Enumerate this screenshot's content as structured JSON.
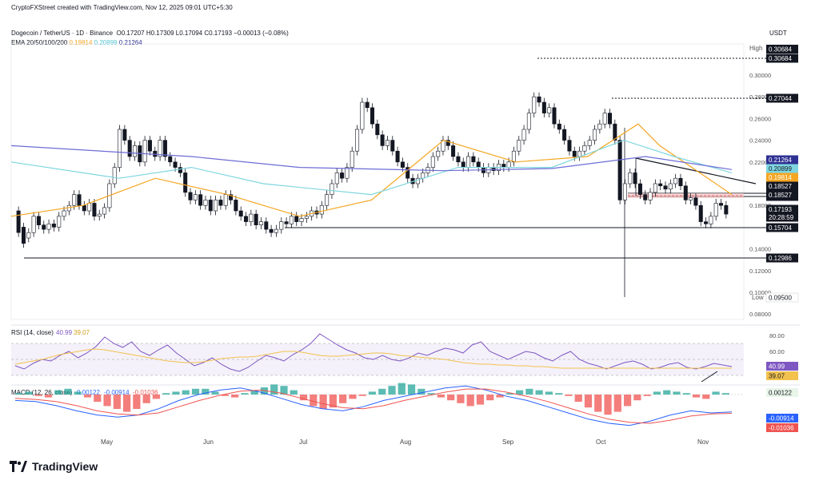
{
  "header": {
    "created": "CryptoFXStreet created with TradingView.com, Nov 12, 2025 09:01 UTC+5:30",
    "symbol": "Dogecoin / TetherUS · 1D · Binance",
    "ohlc": "O0.17207 H0.17309 L0.17094 C0.17193 −0.00013 (−0.08%)",
    "ema_label": "EMA 20/50/100/200",
    "ema_values": [
      "0.19814",
      "0.20899",
      "0.21264"
    ],
    "currency": "USDT"
  },
  "branding": {
    "name": "TradingView"
  },
  "colors": {
    "up": "#26a69a",
    "down": "#131722",
    "ema20": "#f5a623",
    "ema50": "#7fd6e0",
    "ema200": "#6c6cd6",
    "rsi": "#7e57c2",
    "rsi_ma": "#f2c14e",
    "macd": "#2962ff",
    "signal": "#ef5350",
    "hist_up": "#26a69a",
    "hist_down": "#ef5350"
  },
  "chart_data": [
    {
      "type": "candlestick",
      "title": "Dogecoin / TetherUS · 1D · Binance",
      "x_labels": [
        "May",
        "Jun",
        "Jul",
        "Aug",
        "Sep",
        "Oct",
        "Nov"
      ],
      "y_ticks": [
        "0.30000",
        "0.28000",
        "0.26000",
        "0.24000",
        "0.22000",
        "0.18000",
        "0.14000",
        "0.12000",
        "0.10000",
        "0.08000"
      ],
      "ylim": [
        0.075,
        0.325
      ],
      "price_path": [
        [
          0.175,
          0.155
        ],
        [
          0.16,
          0.145
        ],
        [
          0.15,
          0.155
        ],
        [
          0.155,
          0.17
        ],
        [
          0.17,
          0.162
        ],
        [
          0.162,
          0.158
        ],
        [
          0.158,
          0.163
        ],
        [
          0.163,
          0.16
        ],
        [
          0.16,
          0.17
        ],
        [
          0.17,
          0.175
        ],
        [
          0.175,
          0.18
        ],
        [
          0.18,
          0.19
        ],
        [
          0.19,
          0.18
        ],
        [
          0.18,
          0.175
        ],
        [
          0.175,
          0.182
        ],
        [
          0.182,
          0.17
        ],
        [
          0.17,
          0.172
        ],
        [
          0.172,
          0.178
        ],
        [
          0.178,
          0.2
        ],
        [
          0.2,
          0.215
        ],
        [
          0.215,
          0.25
        ],
        [
          0.25,
          0.24
        ],
        [
          0.24,
          0.225
        ],
        [
          0.225,
          0.235
        ],
        [
          0.235,
          0.22
        ],
        [
          0.22,
          0.24
        ],
        [
          0.24,
          0.23
        ],
        [
          0.23,
          0.225
        ],
        [
          0.225,
          0.24
        ],
        [
          0.24,
          0.225
        ],
        [
          0.225,
          0.22
        ],
        [
          0.22,
          0.215
        ],
        [
          0.215,
          0.21
        ],
        [
          0.21,
          0.192
        ],
        [
          0.192,
          0.185
        ],
        [
          0.185,
          0.19
        ],
        [
          0.19,
          0.18
        ],
        [
          0.18,
          0.185
        ],
        [
          0.185,
          0.175
        ],
        [
          0.175,
          0.185
        ],
        [
          0.185,
          0.18
        ],
        [
          0.18,
          0.19
        ],
        [
          0.19,
          0.185
        ],
        [
          0.185,
          0.175
        ],
        [
          0.175,
          0.17
        ],
        [
          0.17,
          0.165
        ],
        [
          0.165,
          0.172
        ],
        [
          0.172,
          0.162
        ],
        [
          0.162,
          0.165
        ],
        [
          0.165,
          0.158
        ],
        [
          0.158,
          0.155
        ],
        [
          0.155,
          0.158
        ],
        [
          0.158,
          0.165
        ],
        [
          0.165,
          0.163
        ],
        [
          0.163,
          0.17
        ],
        [
          0.17,
          0.165
        ],
        [
          0.165,
          0.168
        ],
        [
          0.168,
          0.17
        ],
        [
          0.17,
          0.175
        ],
        [
          0.175,
          0.172
        ],
        [
          0.172,
          0.18
        ],
        [
          0.18,
          0.19
        ],
        [
          0.19,
          0.2
        ],
        [
          0.2,
          0.21
        ],
        [
          0.21,
          0.205
        ],
        [
          0.205,
          0.215
        ],
        [
          0.215,
          0.23
        ],
        [
          0.23,
          0.25
        ],
        [
          0.25,
          0.275
        ],
        [
          0.275,
          0.27
        ],
        [
          0.27,
          0.255
        ],
        [
          0.255,
          0.245
        ],
        [
          0.245,
          0.235
        ],
        [
          0.235,
          0.24
        ],
        [
          0.24,
          0.23
        ],
        [
          0.23,
          0.22
        ],
        [
          0.22,
          0.215
        ],
        [
          0.215,
          0.205
        ],
        [
          0.205,
          0.2
        ],
        [
          0.2,
          0.205
        ],
        [
          0.205,
          0.21
        ],
        [
          0.21,
          0.215
        ],
        [
          0.215,
          0.225
        ],
        [
          0.225,
          0.23
        ],
        [
          0.23,
          0.24
        ],
        [
          0.24,
          0.235
        ],
        [
          0.235,
          0.225
        ],
        [
          0.225,
          0.22
        ],
        [
          0.22,
          0.215
        ],
        [
          0.215,
          0.225
        ],
        [
          0.225,
          0.22
        ],
        [
          0.22,
          0.215
        ],
        [
          0.215,
          0.21
        ],
        [
          0.21,
          0.215
        ],
        [
          0.215,
          0.212
        ],
        [
          0.212,
          0.218
        ],
        [
          0.218,
          0.215
        ],
        [
          0.215,
          0.22
        ],
        [
          0.22,
          0.23
        ],
        [
          0.23,
          0.24
        ],
        [
          0.24,
          0.25
        ],
        [
          0.25,
          0.265
        ],
        [
          0.265,
          0.28
        ],
        [
          0.28,
          0.275
        ],
        [
          0.275,
          0.265
        ],
        [
          0.265,
          0.27
        ],
        [
          0.27,
          0.255
        ],
        [
          0.255,
          0.25
        ],
        [
          0.25,
          0.24
        ],
        [
          0.24,
          0.23
        ],
        [
          0.23,
          0.225
        ],
        [
          0.225,
          0.23
        ],
        [
          0.23,
          0.235
        ],
        [
          0.235,
          0.24
        ],
        [
          0.24,
          0.25
        ],
        [
          0.25,
          0.255
        ],
        [
          0.255,
          0.265
        ],
        [
          0.265,
          0.255
        ],
        [
          0.255,
          0.24
        ],
        [
          0.24,
          0.185
        ],
        [
          0.185,
          0.2
        ],
        [
          0.2,
          0.21
        ],
        [
          0.21,
          0.2
        ],
        [
          0.2,
          0.19
        ],
        [
          0.19,
          0.185
        ],
        [
          0.185,
          0.192
        ],
        [
          0.192,
          0.2
        ],
        [
          0.2,
          0.198
        ],
        [
          0.198,
          0.195
        ],
        [
          0.195,
          0.2
        ],
        [
          0.2,
          0.205
        ],
        [
          0.205,
          0.198
        ],
        [
          0.198,
          0.185
        ],
        [
          0.185,
          0.187
        ],
        [
          0.187,
          0.18
        ],
        [
          0.18,
          0.165
        ],
        [
          0.165,
          0.163
        ],
        [
          0.163,
          0.17
        ],
        [
          0.17,
          0.182
        ],
        [
          0.182,
          0.18
        ],
        [
          0.18,
          0.172
        ]
      ],
      "ema20": [
        [
          0,
          0.17
        ],
        [
          0.1,
          0.18
        ],
        [
          0.2,
          0.205
        ],
        [
          0.3,
          0.19
        ],
        [
          0.4,
          0.17
        ],
        [
          0.5,
          0.185
        ],
        [
          0.6,
          0.24
        ],
        [
          0.7,
          0.22
        ],
        [
          0.8,
          0.225
        ],
        [
          0.87,
          0.255
        ],
        [
          0.9,
          0.235
        ],
        [
          1,
          0.19
        ]
      ],
      "ema50": [
        [
          0,
          0.22
        ],
        [
          0.15,
          0.205
        ],
        [
          0.25,
          0.215
        ],
        [
          0.35,
          0.2
        ],
        [
          0.5,
          0.19
        ],
        [
          0.62,
          0.215
        ],
        [
          0.75,
          0.215
        ],
        [
          0.85,
          0.24
        ],
        [
          0.92,
          0.225
        ],
        [
          1,
          0.21
        ]
      ],
      "ema200": [
        [
          0,
          0.235
        ],
        [
          0.25,
          0.225
        ],
        [
          0.4,
          0.215
        ],
        [
          0.6,
          0.212
        ],
        [
          0.75,
          0.214
        ],
        [
          0.88,
          0.225
        ],
        [
          1,
          0.213
        ]
      ],
      "levels": [
        "0.30684",
        "0.27044",
        "0.18527",
        "0.18527",
        "0.15704",
        "0.12986"
      ],
      "high_label": "High",
      "high_value": "0.30684",
      "low_label": "Low",
      "low_value": "0.09500",
      "price_tags": [
        {
          "value": "0.21264",
          "color": "#2e3192"
        },
        {
          "value": "0.20899",
          "color": "#7fd6e0"
        },
        {
          "value": "0.19814",
          "color": "#f5a623"
        },
        {
          "value": "0.18527",
          "color": "#131722"
        },
        {
          "value": "0.18527",
          "color": "#131722"
        },
        {
          "value": "0.17193",
          "color": "#131722"
        },
        {
          "value": "20:28:59",
          "color": "#131722"
        }
      ]
    },
    {
      "type": "line",
      "title": "RSI (14, close)",
      "values_label": [
        "40.99",
        "39.07"
      ],
      "y_ticks": [
        "80.00",
        "60.00"
      ],
      "ylim": [
        25,
        90
      ],
      "rsi": [
        42,
        38,
        45,
        50,
        48,
        55,
        60,
        52,
        58,
        66,
        78,
        70,
        65,
        72,
        60,
        55,
        62,
        68,
        58,
        50,
        42,
        46,
        52,
        44,
        38,
        35,
        40,
        48,
        55,
        52,
        48,
        56,
        62,
        70,
        82,
        75,
        68,
        62,
        58,
        52,
        50,
        55,
        50,
        48,
        52,
        58,
        55,
        60,
        64,
        62,
        58,
        68,
        72,
        60,
        55,
        50,
        55,
        60,
        58,
        52,
        48,
        55,
        60,
        50,
        45,
        42,
        38,
        42,
        46,
        48,
        44,
        38,
        40,
        44,
        46,
        40,
        38,
        41,
        45,
        43,
        41
      ],
      "rsi_ma": [
        44,
        46,
        48,
        50,
        53,
        56,
        58,
        60,
        62,
        63,
        62,
        60,
        58,
        56,
        54,
        52,
        50,
        48,
        47,
        46,
        46,
        47,
        49,
        51,
        52,
        53,
        53,
        54,
        56,
        58,
        60,
        60,
        59,
        57,
        55,
        54,
        54,
        55,
        56,
        57,
        58,
        58,
        57,
        55,
        54,
        53,
        52,
        51,
        50,
        48,
        46,
        45,
        44,
        44,
        43,
        43,
        42,
        42,
        41,
        41,
        40,
        39,
        39,
        39,
        39,
        39,
        39,
        39,
        39,
        39,
        39,
        39,
        39,
        39,
        39,
        39,
        39,
        39,
        39,
        39,
        39
      ],
      "last": [
        "40.99",
        "39.07"
      ]
    },
    {
      "type": "bar",
      "title": "MACD (12, 26, close)",
      "values_label": [
        "0.00122",
        "-0.00914",
        "-0.01036"
      ],
      "histogram": [
        0.001,
        0.002,
        -0.001,
        -0.002,
        0.003,
        0.004,
        0.002,
        -0.002,
        -0.005,
        -0.008,
        -0.01,
        -0.012,
        -0.01,
        -0.006,
        -0.003,
        0.001,
        0.002,
        0.003,
        0.004,
        0.004,
        0.002,
        -0.001,
        -0.002,
        0.001,
        0.003,
        0.005,
        0.007,
        0.006,
        0.003,
        -0.004,
        -0.008,
        -0.01,
        -0.009,
        -0.006,
        -0.003,
        -0.001,
        0.002,
        0.004,
        0.006,
        0.008,
        0.007,
        0.004,
        0.001,
        -0.002,
        -0.004,
        -0.006,
        -0.008,
        -0.007,
        -0.004,
        -0.002,
        0.001,
        0.003,
        0.004,
        0.003,
        0.002,
        0.001,
        -0.001,
        -0.005,
        -0.009,
        -0.012,
        -0.014,
        -0.012,
        -0.008,
        -0.004,
        -0.001,
        0.002,
        0.003,
        0.002,
        0.001,
        -0.002,
        -0.003,
        0.002,
        0.001
      ],
      "macd": [
        0.002,
        0.001,
        -0.003,
        -0.008,
        -0.012,
        -0.014,
        -0.012,
        -0.006,
        0.002,
        0.008,
        0.012,
        0.014,
        0.01,
        0.004,
        -0.002,
        -0.006,
        -0.008,
        -0.004,
        0.002,
        0.006,
        0.01,
        0.014,
        0.016,
        0.012,
        0.006,
        0.002,
        -0.004,
        -0.01,
        -0.016,
        -0.02,
        -0.022,
        -0.018,
        -0.012,
        -0.008,
        -0.01,
        -0.009
      ],
      "signal": [
        0.004,
        0.003,
        0.001,
        -0.003,
        -0.008,
        -0.011,
        -0.012,
        -0.01,
        -0.004,
        0.002,
        0.007,
        0.011,
        0.012,
        0.009,
        0.004,
        -0.001,
        -0.005,
        -0.006,
        -0.003,
        0.002,
        0.006,
        0.01,
        0.013,
        0.013,
        0.01,
        0.006,
        0.001,
        -0.005,
        -0.011,
        -0.016,
        -0.019,
        -0.02,
        -0.017,
        -0.013,
        -0.011,
        -0.0104
      ],
      "values_shown": [
        "0.00122",
        "-0.00914",
        "-0.01036"
      ]
    }
  ]
}
